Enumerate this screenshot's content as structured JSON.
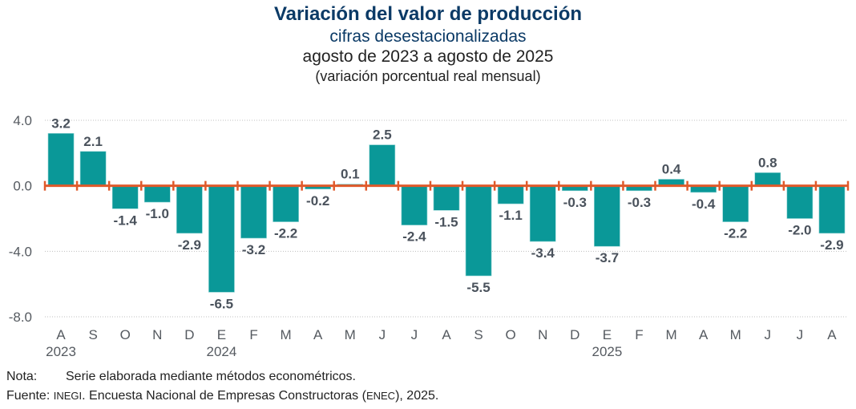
{
  "chart_data": {
    "type": "bar",
    "title": "Variación del valor de producción",
    "subtitle": "cifras desestacionalizadas",
    "period": "agosto de 2023 a agosto de 2025",
    "units": "(variación porcentual real mensual)",
    "categories": [
      "A",
      "S",
      "O",
      "N",
      "D",
      "E",
      "F",
      "M",
      "A",
      "M",
      "J",
      "J",
      "A",
      "S",
      "O",
      "N",
      "D",
      "E",
      "F",
      "M",
      "A",
      "M",
      "J",
      "J",
      "A"
    ],
    "year_labels": [
      {
        "index": 0,
        "label": "2023"
      },
      {
        "index": 5,
        "label": "2024"
      },
      {
        "index": 17,
        "label": "2025"
      }
    ],
    "values": [
      3.2,
      2.1,
      -1.4,
      -1.0,
      -2.9,
      -6.5,
      -3.2,
      -2.2,
      -0.2,
      0.1,
      2.5,
      -2.4,
      -1.5,
      -5.5,
      -1.1,
      -3.4,
      -0.3,
      -3.7,
      -0.3,
      0.4,
      -0.4,
      -2.2,
      0.8,
      -2.0,
      -2.9
    ],
    "data_labels": [
      "3.2",
      "2.1",
      "-1.4",
      "-1.0",
      "-2.9",
      "-6.5",
      "-3.2",
      "-2.2",
      "-0.2",
      "0.1",
      "2.5",
      "-2.4",
      "-1.5",
      "-5.5",
      "-1.1",
      "-3.4",
      "-0.3",
      "-3.7",
      "-0.3",
      "0.4",
      "-0.4",
      "-2.2",
      "0.8",
      "-2.0",
      "-2.9"
    ],
    "yticks": [
      4.0,
      0.0,
      -4.0,
      -8.0
    ],
    "ytick_labels": [
      "4.0",
      "0.0",
      "-4.0",
      "-8.0"
    ],
    "ylim": [
      -8.0,
      4.0
    ],
    "xlabel": "",
    "ylabel": "",
    "grid": "horizontal dotted",
    "legend": "none",
    "colors": {
      "bar": "#0A9898",
      "zero_axis": "#E05A2B",
      "grid": "#BFBFBF",
      "label": "#4A525C"
    }
  },
  "notes": {
    "nota_label": "Nota:",
    "nota_text": "Serie elaborada mediante métodos econométricos.",
    "fuente_label": "Fuente:",
    "fuente_org": "INEGI",
    "fuente_text_1": ". Encuesta Nacional de Empresas Constructoras (",
    "fuente_abbr": "ENEC",
    "fuente_text_2": "), 2025."
  }
}
